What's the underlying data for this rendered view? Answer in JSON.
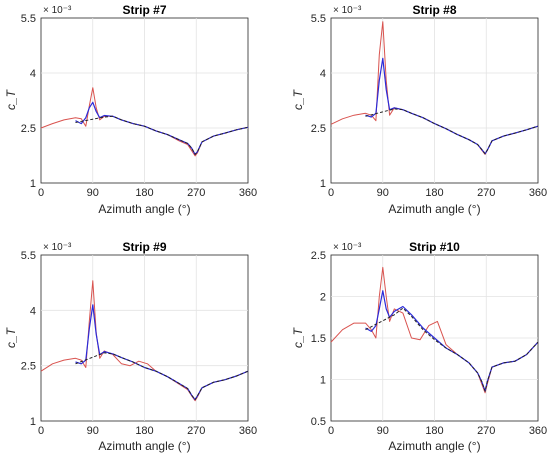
{
  "chart_data": [
    {
      "type": "line",
      "title": "Strip #7",
      "xlabel": "Azimuth angle (°)",
      "ylabel": "c_T",
      "exponent": "× 10⁻³",
      "xlim": [
        0,
        360
      ],
      "ylim": [
        1,
        5.5
      ],
      "xticks": [
        "0",
        "90",
        "180",
        "270",
        "360"
      ],
      "yticks": [
        "1",
        "2.5",
        "4",
        "5.5"
      ],
      "grid": true,
      "series": [
        {
          "color": "#d9534f",
          "style": "solid",
          "width": 1,
          "x": [
            0,
            20,
            40,
            60,
            70,
            78,
            84,
            90,
            96,
            102,
            110,
            125,
            140,
            160,
            180,
            200,
            220,
            240,
            255,
            262,
            268,
            272,
            280,
            300,
            320,
            340,
            360
          ],
          "y": [
            2.5,
            2.62,
            2.72,
            2.78,
            2.75,
            2.55,
            3.1,
            3.6,
            3.05,
            2.72,
            2.82,
            2.82,
            2.72,
            2.62,
            2.55,
            2.42,
            2.32,
            2.15,
            2.05,
            1.88,
            1.74,
            1.82,
            2.12,
            2.28,
            2.36,
            2.45,
            2.52
          ]
        },
        {
          "color": "#2b2bd9",
          "style": "solid",
          "width": 1.2,
          "x": [
            60,
            70,
            78,
            84,
            90,
            96,
            102,
            110,
            125,
            140,
            160,
            180,
            200,
            220,
            240,
            255,
            262,
            268,
            272,
            280,
            300,
            320,
            340,
            360
          ],
          "y": [
            2.7,
            2.62,
            2.78,
            3.05,
            3.2,
            2.95,
            2.78,
            2.84,
            2.82,
            2.72,
            2.62,
            2.55,
            2.42,
            2.32,
            2.18,
            2.08,
            1.95,
            1.78,
            1.85,
            2.12,
            2.28,
            2.36,
            2.45,
            2.52
          ]
        },
        {
          "color": "#222222",
          "style": "dashed",
          "width": 1,
          "x": [
            60,
            110,
            125,
            140,
            160,
            180,
            200,
            220,
            240,
            255,
            262,
            268,
            272,
            280,
            300,
            320,
            340,
            360
          ],
          "y": [
            2.65,
            2.8,
            2.82,
            2.72,
            2.62,
            2.55,
            2.42,
            2.32,
            2.18,
            2.08,
            1.95,
            1.78,
            1.85,
            2.12,
            2.28,
            2.36,
            2.45,
            2.52
          ]
        }
      ]
    },
    {
      "type": "line",
      "title": "Strip #8",
      "xlabel": "Azimuth angle (°)",
      "ylabel": "c_T",
      "exponent": "× 10⁻³",
      "xlim": [
        0,
        360
      ],
      "ylim": [
        1,
        5.5
      ],
      "xticks": [
        "0",
        "90",
        "180",
        "270",
        "360"
      ],
      "yticks": [
        "1",
        "2.5",
        "4",
        "5.5"
      ],
      "grid": true,
      "series": [
        {
          "color": "#d9534f",
          "style": "solid",
          "width": 1,
          "x": [
            0,
            20,
            40,
            60,
            70,
            78,
            84,
            90,
            96,
            102,
            110,
            125,
            140,
            160,
            180,
            200,
            220,
            240,
            255,
            262,
            268,
            272,
            280,
            300,
            320,
            340,
            360
          ],
          "y": [
            2.6,
            2.75,
            2.85,
            2.9,
            2.85,
            2.7,
            4.5,
            5.4,
            3.8,
            2.85,
            3.05,
            3.0,
            2.9,
            2.78,
            2.62,
            2.48,
            2.32,
            2.18,
            2.05,
            1.9,
            1.78,
            1.9,
            2.15,
            2.28,
            2.36,
            2.45,
            2.55
          ]
        },
        {
          "color": "#2b2bd9",
          "style": "solid",
          "width": 1.2,
          "x": [
            60,
            70,
            78,
            84,
            90,
            96,
            102,
            110,
            125,
            140,
            160,
            180,
            200,
            220,
            240,
            255,
            262,
            268,
            272,
            280,
            300,
            320,
            340,
            360
          ],
          "y": [
            2.85,
            2.8,
            2.9,
            3.8,
            4.4,
            3.55,
            3.0,
            3.05,
            3.0,
            2.9,
            2.78,
            2.62,
            2.48,
            2.32,
            2.18,
            2.05,
            1.92,
            1.8,
            1.9,
            2.15,
            2.28,
            2.36,
            2.45,
            2.55
          ]
        },
        {
          "color": "#222222",
          "style": "dashed",
          "width": 1,
          "x": [
            60,
            110,
            125,
            140,
            160,
            180,
            200,
            220,
            240,
            255,
            262,
            268,
            272,
            280,
            300,
            320,
            340,
            360
          ],
          "y": [
            2.82,
            3.02,
            3.0,
            2.9,
            2.78,
            2.62,
            2.48,
            2.32,
            2.18,
            2.05,
            1.92,
            1.8,
            1.9,
            2.15,
            2.28,
            2.36,
            2.45,
            2.55
          ]
        }
      ]
    },
    {
      "type": "line",
      "title": "Strip #9",
      "xlabel": "Azimuth angle (°)",
      "ylabel": "c_T",
      "exponent": "× 10⁻³",
      "xlim": [
        0,
        360
      ],
      "ylim": [
        1,
        5.5
      ],
      "xticks": [
        "0",
        "90",
        "180",
        "270",
        "360"
      ],
      "yticks": [
        "1",
        "2.5",
        "4",
        "5.5"
      ],
      "grid": true,
      "series": [
        {
          "color": "#d9534f",
          "style": "solid",
          "width": 1,
          "x": [
            0,
            20,
            40,
            60,
            70,
            78,
            84,
            90,
            96,
            102,
            110,
            125,
            140,
            155,
            170,
            185,
            200,
            220,
            240,
            255,
            262,
            268,
            272,
            280,
            300,
            320,
            340,
            360
          ],
          "y": [
            2.35,
            2.55,
            2.65,
            2.7,
            2.65,
            2.45,
            3.7,
            4.8,
            3.4,
            2.7,
            2.9,
            2.8,
            2.55,
            2.5,
            2.62,
            2.55,
            2.35,
            2.2,
            2.0,
            1.85,
            1.68,
            1.55,
            1.65,
            1.9,
            2.05,
            2.12,
            2.22,
            2.35
          ]
        },
        {
          "color": "#2b2bd9",
          "style": "solid",
          "width": 1.2,
          "x": [
            60,
            70,
            78,
            84,
            90,
            96,
            102,
            110,
            125,
            140,
            160,
            180,
            200,
            220,
            240,
            255,
            262,
            268,
            272,
            280,
            300,
            320,
            340,
            360
          ],
          "y": [
            2.6,
            2.55,
            2.65,
            3.5,
            4.15,
            3.35,
            2.8,
            2.88,
            2.82,
            2.72,
            2.6,
            2.45,
            2.35,
            2.2,
            2.02,
            1.88,
            1.7,
            1.58,
            1.68,
            1.9,
            2.05,
            2.12,
            2.22,
            2.35
          ]
        },
        {
          "color": "#222222",
          "style": "dashed",
          "width": 1,
          "x": [
            60,
            110,
            125,
            140,
            160,
            180,
            200,
            220,
            240,
            255,
            262,
            268,
            272,
            280,
            300,
            320,
            340,
            360
          ],
          "y": [
            2.55,
            2.85,
            2.82,
            2.72,
            2.6,
            2.45,
            2.35,
            2.2,
            2.02,
            1.88,
            1.7,
            1.58,
            1.68,
            1.9,
            2.05,
            2.12,
            2.22,
            2.35
          ]
        }
      ]
    },
    {
      "type": "line",
      "title": "Strip #10",
      "xlabel": "Azimuth angle (°)",
      "ylabel": "c_T",
      "exponent": "× 10⁻³",
      "xlim": [
        0,
        360
      ],
      "ylim": [
        0.5,
        2.5
      ],
      "xticks": [
        "0",
        "90",
        "180",
        "270",
        "360"
      ],
      "yticks": [
        "0.5",
        "1",
        "1.5",
        "2",
        "2.5"
      ],
      "grid": true,
      "series": [
        {
          "color": "#d9534f",
          "style": "solid",
          "width": 1,
          "x": [
            0,
            20,
            40,
            60,
            70,
            78,
            84,
            90,
            96,
            102,
            110,
            125,
            140,
            155,
            170,
            185,
            200,
            220,
            240,
            255,
            262,
            268,
            272,
            280,
            300,
            320,
            340,
            360
          ],
          "y": [
            1.45,
            1.6,
            1.68,
            1.68,
            1.6,
            1.5,
            2.0,
            2.35,
            2.0,
            1.7,
            1.85,
            1.8,
            1.5,
            1.48,
            1.65,
            1.7,
            1.42,
            1.3,
            1.2,
            1.08,
            0.95,
            0.84,
            0.95,
            1.15,
            1.2,
            1.22,
            1.3,
            1.45
          ]
        },
        {
          "color": "#2b2bd9",
          "style": "solid",
          "width": 1.2,
          "x": [
            60,
            70,
            78,
            84,
            90,
            96,
            102,
            110,
            125,
            140,
            160,
            180,
            200,
            220,
            240,
            255,
            262,
            268,
            272,
            280,
            300,
            320,
            340,
            360
          ],
          "y": [
            1.62,
            1.58,
            1.65,
            1.85,
            2.07,
            1.85,
            1.75,
            1.82,
            1.88,
            1.78,
            1.62,
            1.5,
            1.38,
            1.3,
            1.2,
            1.08,
            0.98,
            0.86,
            0.98,
            1.15,
            1.2,
            1.22,
            1.3,
            1.45
          ]
        },
        {
          "color": "#222222",
          "style": "dashed",
          "width": 1,
          "x": [
            60,
            110,
            125,
            140,
            160,
            180,
            200,
            220,
            240,
            255,
            262,
            268,
            272,
            280,
            300,
            320,
            340,
            360
          ],
          "y": [
            1.6,
            1.78,
            1.86,
            1.76,
            1.6,
            1.48,
            1.38,
            1.3,
            1.2,
            1.08,
            0.98,
            0.86,
            0.98,
            1.15,
            1.2,
            1.22,
            1.3,
            1.45
          ]
        }
      ]
    }
  ]
}
